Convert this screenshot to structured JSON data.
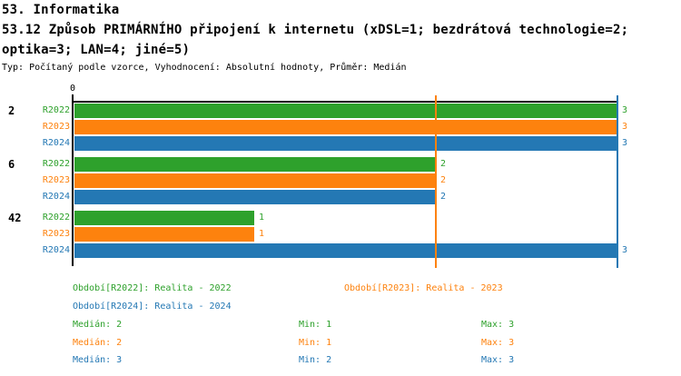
{
  "header": {
    "section_title": "53. Informatika",
    "question_line1": "53.12 Způsob PRIMÁRNÍHO připojení k internetu (xDSL=1; bezdrátová technologie=2;",
    "question_line2": "optika=3; LAN=4; jiné=5)",
    "meta": "Typ: Počítaný podle vzorce, Vyhodnocení: Absolutní hodnoty, Průměr: Medián"
  },
  "chart_data": {
    "type": "bar",
    "orientation": "horizontal",
    "title": "53.12 Způsob PRIMÁRNÍHO připojení k internetu (xDSL=1; bezdrátová technologie=2; optika=3; LAN=4; jiné=5)",
    "categories": [
      "2",
      "6",
      "42"
    ],
    "series": [
      {
        "name": "R2022",
        "color": "#2EA12C",
        "values": [
          3,
          2,
          1
        ],
        "median": 2,
        "min": 1,
        "max": 3,
        "legend": "Období[R2022]: Realita - 2022",
        "median_label": "Medián: 2",
        "min_label": "Min: 1",
        "max_label": "Max: 3"
      },
      {
        "name": "R2023",
        "color": "#FD820E",
        "values": [
          3,
          2,
          1
        ],
        "median": 2,
        "min": 1,
        "max": 3,
        "legend": "Období[R2023]: Realita - 2023",
        "median_label": "Medián: 2",
        "min_label": "Min: 1",
        "max_label": "Max: 3"
      },
      {
        "name": "R2024",
        "color": "#2478B4",
        "values": [
          3,
          2,
          3
        ],
        "median": 3,
        "min": 2,
        "max": 3,
        "legend": "Období[R2024]: Realita - 2024",
        "median_label": "Medián: 3",
        "min_label": "Min: 2",
        "max_label": "Max: 3"
      }
    ],
    "xlim": [
      0,
      3
    ],
    "axis_tick_label": "0",
    "value_axis_position": "top",
    "grid": false,
    "median_lines": [
      2,
      2,
      3
    ],
    "legend_position": "bottom",
    "axis_color": "#000000"
  }
}
